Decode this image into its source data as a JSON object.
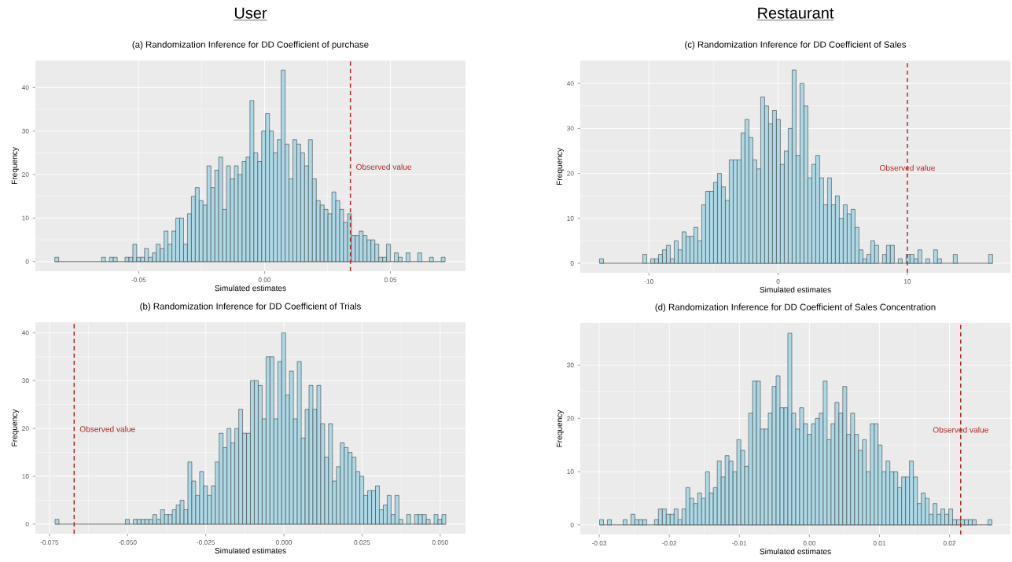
{
  "chart_data": [
    {
      "type": "histogram",
      "title": "(a) Randomization Inference for DD Coefficient of purchase",
      "xlabel": "Simulated estimates",
      "ylabel": "Frequency",
      "color": "#add8e6",
      "bins": [
        -0.0833,
        -0.08175,
        -0.0802,
        -0.07865,
        -0.0771,
        -0.07555,
        -0.074,
        -0.07245,
        -0.0709,
        -0.06935,
        -0.0678,
        -0.06625,
        -0.0647,
        -0.06315,
        -0.0616,
        -0.06005,
        -0.0585,
        -0.05695,
        -0.0554,
        -0.05385,
        -0.0523,
        -0.05075,
        -0.0492,
        -0.04765,
        -0.0461,
        -0.04455,
        -0.043,
        -0.04145,
        -0.0399,
        -0.03835,
        -0.0368,
        -0.03525,
        -0.0337,
        -0.03215,
        -0.0306,
        -0.02905,
        -0.0275,
        -0.02595,
        -0.0244,
        -0.02285,
        -0.0213,
        -0.01975,
        -0.0182,
        -0.01665,
        -0.0151,
        -0.01355,
        -0.012,
        -0.01045,
        -0.0089,
        -0.00735,
        -0.0058,
        -0.00425,
        -0.0027,
        -0.00115,
        0.0004,
        0.00195,
        0.0035,
        0.00505,
        0.0066,
        0.00815,
        0.0097,
        0.01125,
        0.0128,
        0.01435,
        0.0159,
        0.01745,
        0.019,
        0.02055,
        0.0221,
        0.02365,
        0.0252,
        0.02675,
        0.0283,
        0.02985,
        0.0314,
        0.03295,
        0.0345,
        0.03605,
        0.0376,
        0.03915,
        0.0407,
        0.04225,
        0.0438,
        0.04535,
        0.0469,
        0.04845,
        0.05,
        0.05155,
        0.0531,
        0.05465,
        0.0562,
        0.05775,
        0.0593,
        0.06085,
        0.0624,
        0.06395,
        0.0655,
        0.06705,
        0.0686,
        0.07015,
        0.0717
      ],
      "values": [
        1,
        0,
        0,
        0,
        0,
        0,
        0,
        0,
        0,
        0,
        0,
        0,
        1,
        0,
        1,
        1,
        0,
        0,
        1,
        1,
        4,
        1,
        1,
        3,
        1,
        2,
        4,
        3,
        7,
        4,
        7,
        10,
        10,
        4,
        11,
        15,
        17,
        14,
        13,
        22,
        17,
        21,
        24,
        12,
        22,
        19,
        22,
        20,
        23,
        24,
        37,
        25,
        23,
        30,
        34,
        30,
        25,
        28,
        44,
        27,
        19,
        28,
        27,
        25,
        22,
        28,
        19,
        14,
        13,
        12,
        11,
        16,
        14,
        12,
        9,
        11,
        6,
        6,
        7,
        6,
        5,
        5,
        4,
        1,
        1,
        4,
        0,
        2,
        1,
        0,
        2,
        0,
        0,
        2,
        0,
        0,
        1,
        0,
        0,
        1
      ],
      "xlim": [
        -0.091,
        0.0798
      ],
      "ylim": [
        -2.2,
        46.2
      ],
      "xticks": [
        {
          "value": -0.05,
          "label": "-0.05"
        },
        {
          "value": 0,
          "label": "0.00"
        },
        {
          "value": 0.05,
          "label": "0.05"
        }
      ],
      "yticks": [
        0,
        10,
        20,
        30,
        40
      ],
      "grid": true,
      "ref_lines": [
        {
          "axis": "x",
          "value": 0.0341,
          "label": "Observed value",
          "color": "#b22222",
          "line_style": "dashed"
        }
      ],
      "annotations": [
        "User"
      ]
    },
    {
      "type": "histogram",
      "title": "(b) Randomization Inference for DD Coefficient of Trials",
      "xlabel": "Simulated estimates",
      "ylabel": "Frequency",
      "color": "#add8e6",
      "bins": [
        -0.0732,
        -0.07195,
        -0.0707,
        -0.06945,
        -0.0682,
        -0.06695,
        -0.0657,
        -0.06445,
        -0.0632,
        -0.06195,
        -0.0607,
        -0.05945,
        -0.0582,
        -0.05695,
        -0.0557,
        -0.05445,
        -0.0532,
        -0.05195,
        -0.0507,
        -0.04945,
        -0.0482,
        -0.04695,
        -0.0457,
        -0.04445,
        -0.0432,
        -0.04195,
        -0.0407,
        -0.03945,
        -0.0382,
        -0.03695,
        -0.0357,
        -0.03445,
        -0.0332,
        -0.03195,
        -0.0307,
        -0.02945,
        -0.0282,
        -0.02695,
        -0.0257,
        -0.02445,
        -0.0232,
        -0.02195,
        -0.0207,
        -0.01945,
        -0.0182,
        -0.01695,
        -0.0157,
        -0.01445,
        -0.0132,
        -0.01195,
        -0.0107,
        -0.00945,
        -0.0082,
        -0.00695,
        -0.0057,
        -0.00445,
        -0.0032,
        -0.00195,
        -0.0007,
        0.00055,
        0.0018,
        0.00305,
        0.0043,
        0.00555,
        0.0068,
        0.00805,
        0.0093,
        0.01055,
        0.0118,
        0.01305,
        0.0143,
        0.01555,
        0.0168,
        0.01805,
        0.0193,
        0.02055,
        0.0218,
        0.02305,
        0.0243,
        0.02555,
        0.0268,
        0.02805,
        0.0293,
        0.03055,
        0.0318,
        0.03305,
        0.0343,
        0.03555,
        0.0368,
        0.03805,
        0.0393,
        0.04055,
        0.0418,
        0.04305,
        0.0443,
        0.04555,
        0.0468,
        0.04805,
        0.0493,
        0.05055,
        0.0518
      ],
      "values": [
        1,
        0,
        0,
        0,
        0,
        0,
        0,
        0,
        0,
        0,
        0,
        0,
        0,
        0,
        0,
        0,
        0,
        0,
        1,
        0,
        1,
        1,
        1,
        1,
        1,
        2,
        1,
        3,
        2,
        2,
        3,
        4,
        5,
        3,
        13,
        9,
        6,
        11,
        8,
        6,
        8,
        13,
        19,
        16,
        20,
        17,
        20,
        24,
        19,
        19,
        30,
        30,
        29,
        22,
        35,
        35,
        22,
        34,
        40,
        27,
        32,
        22,
        34,
        18,
        24,
        29,
        24,
        29,
        21,
        14,
        21,
        9,
        12,
        17,
        16,
        15,
        14,
        11,
        10,
        6,
        7,
        7,
        8,
        3,
        4,
        6,
        2,
        6,
        1,
        0,
        2,
        0,
        2,
        2,
        2,
        1,
        0,
        2,
        1,
        2
      ],
      "xlim": [
        -0.0795,
        0.0581
      ],
      "ylim": [
        -2,
        42.2
      ],
      "xticks": [
        {
          "value": -0.075,
          "label": "-0.075"
        },
        {
          "value": -0.05,
          "label": "-0.050"
        },
        {
          "value": -0.025,
          "label": "-0.025"
        },
        {
          "value": 0,
          "label": "0.000"
        },
        {
          "value": 0.025,
          "label": "0.025"
        },
        {
          "value": 0.05,
          "label": "0.050"
        }
      ],
      "yticks": [
        0,
        10,
        20,
        30,
        40
      ],
      "grid": true,
      "ref_lines": [
        {
          "axis": "x",
          "value": -0.0671,
          "label": "Observed value",
          "color": "#b22222",
          "line_style": "dashed"
        }
      ]
    },
    {
      "type": "histogram",
      "title": "(c) Randomization Inference for DD Coefficient of Sales",
      "xlabel": "Simulated estimates",
      "ylabel": "Frequency",
      "color": "#add8e6",
      "bins": [
        -13.81,
        -13.506,
        -13.202,
        -12.898,
        -12.594,
        -12.29,
        -11.986,
        -11.682,
        -11.378,
        -11.074,
        -10.77,
        -10.466,
        -10.162,
        -9.858,
        -9.554,
        -9.25,
        -8.946,
        -8.642,
        -8.338,
        -8.034,
        -7.73,
        -7.426,
        -7.122,
        -6.818,
        -6.514,
        -6.21,
        -5.906,
        -5.602,
        -5.298,
        -4.994,
        -4.69,
        -4.386,
        -4.082,
        -3.778,
        -3.474,
        -3.17,
        -2.866,
        -2.562,
        -2.258,
        -1.954,
        -1.65,
        -1.346,
        -1.042,
        -0.738,
        -0.434,
        -0.13,
        0.174,
        0.478,
        0.782,
        1.086,
        1.39,
        1.694,
        1.998,
        2.302,
        2.606,
        2.91,
        3.214,
        3.518,
        3.822,
        4.126,
        4.43,
        4.734,
        5.038,
        5.342,
        5.646,
        5.95,
        6.254,
        6.558,
        6.862,
        7.166,
        7.47,
        7.774,
        8.078,
        8.382,
        8.686,
        8.99,
        9.294,
        9.598,
        9.902,
        10.206,
        10.51,
        10.814,
        11.118,
        11.422,
        11.726,
        12.03,
        12.334,
        12.638,
        12.942,
        13.246,
        13.55,
        13.854,
        14.158,
        14.462,
        14.766,
        15.07,
        15.374,
        15.678,
        15.982,
        16.286,
        16.59
      ],
      "values": [
        1,
        0,
        0,
        0,
        0,
        0,
        0,
        0,
        0,
        0,
        0,
        2,
        0,
        1,
        1,
        2,
        3,
        4,
        1,
        5,
        3,
        7,
        6,
        6,
        8,
        5,
        13,
        16,
        16,
        18,
        20,
        17,
        14,
        23,
        23,
        23,
        29,
        32,
        28,
        23,
        21,
        37,
        35,
        31,
        34,
        32,
        22,
        25,
        30,
        43,
        24,
        40,
        35,
        19,
        22,
        24,
        19,
        13,
        19,
        13,
        15,
        10,
        13,
        11,
        12,
        8,
        3,
        1,
        2,
        5,
        4,
        0,
        2,
        4,
        4,
        0,
        1,
        0,
        2,
        2,
        1,
        3,
        0,
        1,
        0,
        3,
        1,
        0,
        0,
        0,
        2,
        0,
        0,
        0,
        0,
        0,
        0,
        0,
        0,
        2
      ],
      "xlim": [
        -15.3,
        17.97
      ],
      "ylim": [
        -2.1,
        45.1
      ],
      "xticks": [
        -10,
        0,
        10
      ],
      "yticks": [
        0,
        10,
        20,
        30,
        40
      ],
      "grid": true,
      "ref_lines": [
        {
          "axis": "x",
          "value": 10,
          "label": "Observed value",
          "color": "#b22222",
          "line_style": "dashed"
        }
      ],
      "annotations": [
        "Restaurant"
      ]
    },
    {
      "type": "histogram",
      "title": "(d) Randomization Inference for DD Coefficient of Sales Concentration",
      "xlabel": "Simulated estimates",
      "ylabel": "Frequency",
      "color": "#add8e6",
      "bins": [
        -0.02995,
        -0.02939,
        -0.02883,
        -0.02827,
        -0.02771,
        -0.02715,
        -0.02659,
        -0.02603,
        -0.02547,
        -0.02491,
        -0.02435,
        -0.02379,
        -0.02323,
        -0.02267,
        -0.02211,
        -0.02155,
        -0.02099,
        -0.02043,
        -0.01987,
        -0.01931,
        -0.01875,
        -0.01819,
        -0.01763,
        -0.01707,
        -0.01651,
        -0.01595,
        -0.01539,
        -0.01483,
        -0.01427,
        -0.01371,
        -0.01315,
        -0.01259,
        -0.01203,
        -0.01147,
        -0.01091,
        -0.01035,
        -0.00979,
        -0.00923,
        -0.00867,
        -0.00811,
        -0.00755,
        -0.00699,
        -0.00643,
        -0.00587,
        -0.00531,
        -0.00475,
        -0.00419,
        -0.00363,
        -0.00307,
        -0.00251,
        -0.00195,
        -0.00139,
        -0.00083,
        -0.00027,
        0.00029,
        0.00085,
        0.00141,
        0.00197,
        0.00253,
        0.00309,
        0.00365,
        0.00421,
        0.00477,
        0.00533,
        0.00589,
        0.00645,
        0.00701,
        0.00757,
        0.00813,
        0.00869,
        0.00925,
        0.00981,
        0.01037,
        0.01093,
        0.01149,
        0.01205,
        0.01261,
        0.01317,
        0.01373,
        0.01429,
        0.01485,
        0.01541,
        0.01597,
        0.01653,
        0.01709,
        0.01765,
        0.01821,
        0.01877,
        0.01933,
        0.01989,
        0.02045,
        0.02101,
        0.02157,
        0.02213,
        0.02269,
        0.02325,
        0.02381,
        0.02437,
        0.02493,
        0.02549,
        0.02605
      ],
      "values": [
        1,
        0,
        1,
        0,
        0,
        0,
        1,
        0,
        2,
        1,
        1,
        1,
        0,
        0,
        1,
        3,
        3,
        2,
        2,
        3,
        1,
        3,
        7,
        5,
        4,
        6,
        5,
        10,
        6,
        7,
        12,
        9,
        13,
        12,
        10,
        16,
        14,
        11,
        21,
        27,
        27,
        18,
        18,
        21,
        26,
        28,
        22,
        22,
        36,
        21,
        18,
        22,
        19,
        17,
        19,
        20,
        21,
        27,
        16,
        19,
        23,
        21,
        26,
        17,
        21,
        17,
        14,
        16,
        10,
        19,
        19,
        15,
        10,
        12,
        10,
        10,
        7,
        9,
        9,
        12,
        9,
        4,
        6,
        5,
        2,
        4,
        2,
        3,
        2,
        3,
        1,
        1,
        1,
        1,
        1,
        1,
        0,
        0,
        0,
        1
      ],
      "xlim": [
        -0.0327,
        0.0287
      ],
      "ylim": [
        -1.8,
        37.9
      ],
      "xticks": [
        {
          "value": -0.03,
          "label": "-0.03"
        },
        {
          "value": -0.02,
          "label": "-0.02"
        },
        {
          "value": -0.01,
          "label": "-0.01"
        },
        {
          "value": 0,
          "label": "0.00"
        },
        {
          "value": 0.01,
          "label": "0.01"
        },
        {
          "value": 0.02,
          "label": "0.02"
        }
      ],
      "yticks": [
        0,
        10,
        20,
        30
      ],
      "grid": true,
      "ref_lines": [
        {
          "axis": "x",
          "value": 0.0216,
          "label": "Observed value",
          "color": "#b22222",
          "line_style": "dashed"
        }
      ]
    }
  ]
}
